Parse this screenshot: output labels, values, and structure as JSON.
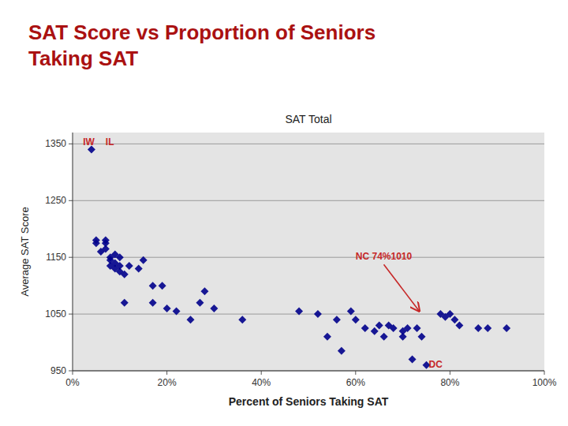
{
  "chart_data": {
    "type": "scatter",
    "title": "SAT Score vs Proportion of Seniors\nTaking SAT",
    "subtitle": "SAT Total",
    "x_label": "Percent of Seniors Taking SAT",
    "y_label": "Average SAT Score",
    "x": [
      0.04,
      0.05,
      0.05,
      0.06,
      0.07,
      0.07,
      0.07,
      0.08,
      0.08,
      0.08,
      0.09,
      0.09,
      0.09,
      0.1,
      0.1,
      0.1,
      0.11,
      0.11,
      0.12,
      0.14,
      0.15,
      0.17,
      0.17,
      0.19,
      0.2,
      0.22,
      0.25,
      0.27,
      0.28,
      0.3,
      0.36,
      0.48,
      0.52,
      0.54,
      0.56,
      0.57,
      0.59,
      0.6,
      0.62,
      0.64,
      0.65,
      0.66,
      0.67,
      0.68,
      0.7,
      0.7,
      0.71,
      0.72,
      0.73,
      0.74,
      0.75,
      0.78,
      0.79,
      0.8,
      0.81,
      0.82,
      0.86,
      0.88,
      0.92
    ],
    "values": [
      1340,
      1175,
      1180,
      1160,
      1175,
      1165,
      1180,
      1135,
      1150,
      1145,
      1130,
      1140,
      1155,
      1150,
      1135,
      1125,
      1070,
      1120,
      1135,
      1130,
      1145,
      1100,
      1070,
      1100,
      1060,
      1055,
      1040,
      1070,
      1090,
      1060,
      1040,
      1055,
      1050,
      1010,
      1040,
      985,
      1055,
      1040,
      1025,
      1020,
      1030,
      1010,
      1030,
      1025,
      1020,
      1010,
      1025,
      970,
      1025,
      1010,
      960,
      1050,
      1045,
      1050,
      1040,
      1030,
      1025,
      1025,
      1025
    ],
    "color": "#00008b",
    "marker": "diamond",
    "xlim": [
      0,
      1.0
    ],
    "ylim": [
      950,
      1370
    ],
    "xticks": [
      {
        "value": 0,
        "label": "0%"
      },
      {
        "value": 0.2,
        "label": "20%"
      },
      {
        "value": 0.4,
        "label": "40%"
      },
      {
        "value": 0.6,
        "label": "60%"
      },
      {
        "value": 0.8,
        "label": "80%"
      },
      {
        "value": 1.0,
        "label": "100%"
      }
    ],
    "yticks": [
      950,
      1050,
      1150,
      1250,
      1350
    ],
    "grid": true,
    "annotations": [
      {
        "text": "IW",
        "x": 0.022,
        "y": 1343
      },
      {
        "text": "IL",
        "x": 0.07,
        "y": 1343
      },
      {
        "text": "NC 74%1010",
        "x": 0.6,
        "y": 1150,
        "point": [
          0.735,
          1055
        ]
      },
      {
        "text": "DC",
        "x": 0.755,
        "y": 960
      }
    ]
  }
}
